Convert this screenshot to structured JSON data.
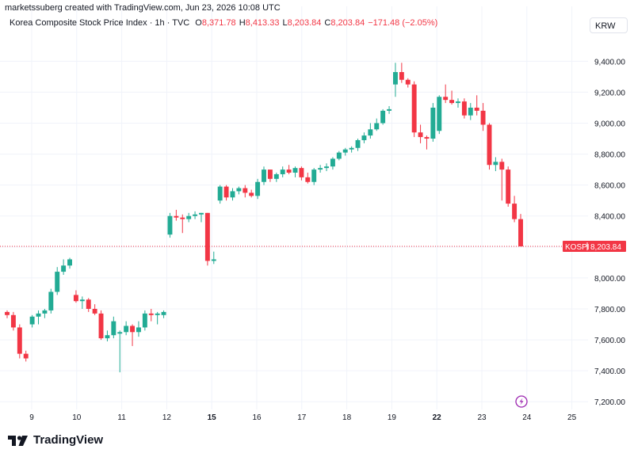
{
  "header": {
    "created_by": "marketssuberg created with TradingView.com, Jun 23, 2026 10:08 UTC",
    "symbol": "Korea Composite Stock Price Index · 1h · TVC",
    "open_label": "O",
    "open": "8,371.78",
    "high_label": "H",
    "high": "8,413.33",
    "low_label": "L",
    "low": "8,203.84",
    "close_label": "C",
    "close": "8,203.84",
    "change": "−171.48 (−2.05%)",
    "currency": "KRW"
  },
  "price_tag": {
    "label": "KOSPI",
    "value": "8,203.84"
  },
  "brand": {
    "name": "TradingView"
  },
  "colors": {
    "up": "#22ab94",
    "down": "#f23645",
    "grid": "#f0f3fa",
    "axis_text": "#131722"
  },
  "chart_data": {
    "type": "candlestick",
    "ylim": [
      7150,
      9550
    ],
    "y_ticks": [
      {
        "value": 7200,
        "label": "7,200.00"
      },
      {
        "value": 7400,
        "label": "7,400.00"
      },
      {
        "value": 7600,
        "label": "7,600.00"
      },
      {
        "value": 7800,
        "label": "7,800.00"
      },
      {
        "value": 8000,
        "label": "8,000.00"
      },
      {
        "value": 8200,
        "label": "8,200.00"
      },
      {
        "value": 8400,
        "label": "8,400.00"
      },
      {
        "value": 8600,
        "label": "8,600.00"
      },
      {
        "value": 8800,
        "label": "8,800.00"
      },
      {
        "value": 9000,
        "label": "9,000.00"
      },
      {
        "value": 9200,
        "label": "9,200.00"
      },
      {
        "value": 9400,
        "label": "9,400.00"
      }
    ],
    "x_ticks": [
      {
        "label": "9",
        "bold": false
      },
      {
        "label": "10",
        "bold": false
      },
      {
        "label": "11",
        "bold": false
      },
      {
        "label": "12",
        "bold": false
      },
      {
        "label": "15",
        "bold": true
      },
      {
        "label": "16",
        "bold": false
      },
      {
        "label": "17",
        "bold": false
      },
      {
        "label": "18",
        "bold": false
      },
      {
        "label": "19",
        "bold": false
      },
      {
        "label": "22",
        "bold": true
      },
      {
        "label": "23",
        "bold": false
      },
      {
        "label": "24",
        "bold": false
      },
      {
        "label": "25",
        "bold": false
      }
    ],
    "last_price": 8203.84,
    "days": [
      {
        "day": "8",
        "candles": [
          [
            7780,
            7790,
            7740,
            7760
          ]
        ]
      },
      {
        "day": "9",
        "candles": [
          [
            7760,
            7780,
            7660,
            7680
          ],
          [
            7680,
            7700,
            7480,
            7510
          ],
          [
            7510,
            7530,
            7460,
            7480
          ],
          [
            7700,
            7760,
            7680,
            7750
          ],
          [
            7750,
            7790,
            7700,
            7770
          ],
          [
            7770,
            7800,
            7740,
            7790
          ]
        ]
      },
      {
        "day": "10",
        "candles": [
          [
            7790,
            7930,
            7770,
            7910
          ],
          [
            7910,
            8070,
            7890,
            8040
          ],
          [
            8040,
            8120,
            8020,
            8080
          ],
          [
            8080,
            8130,
            8060,
            8120
          ],
          [
            7890,
            7920,
            7840,
            7850
          ],
          [
            7850,
            7880,
            7800,
            7860
          ],
          [
            7860,
            7870,
            7780,
            7800
          ]
        ]
      },
      {
        "day": "11",
        "candles": [
          [
            7800,
            7830,
            7760,
            7770
          ],
          [
            7770,
            7790,
            7600,
            7610
          ],
          [
            7610,
            7660,
            7590,
            7630
          ],
          [
            7630,
            7750,
            7610,
            7720
          ],
          [
            7640,
            7660,
            7390,
            7650
          ],
          [
            7650,
            7720,
            7630,
            7690
          ],
          [
            7690,
            7700,
            7560,
            7650
          ]
        ]
      },
      {
        "day": "12",
        "candles": [
          [
            7650,
            7720,
            7620,
            7680
          ],
          [
            7680,
            7790,
            7660,
            7770
          ],
          [
            7770,
            7800,
            7720,
            7760
          ],
          [
            7760,
            7780,
            7700,
            7770
          ],
          [
            7760,
            7790,
            7740,
            7780
          ]
        ]
      },
      {
        "day": "12b",
        "candles": [
          [
            8280,
            8420,
            8260,
            8400
          ],
          [
            8400,
            8440,
            8370,
            8390
          ],
          [
            8390,
            8410,
            8290,
            8380
          ],
          [
            8380,
            8420,
            8360,
            8400
          ],
          [
            8400,
            8430,
            8380,
            8410
          ],
          [
            8410,
            8420,
            8360,
            8420
          ]
        ]
      },
      {
        "day": "15",
        "candles": [
          [
            8420,
            8420,
            8080,
            8110
          ],
          [
            8110,
            8170,
            8090,
            8120
          ],
          [
            8500,
            8600,
            8480,
            8590
          ],
          [
            8590,
            8600,
            8500,
            8520
          ],
          [
            8520,
            8580,
            8500,
            8560
          ],
          [
            8560,
            8590,
            8540,
            8580
          ]
        ]
      },
      {
        "day": "16",
        "candles": [
          [
            8580,
            8600,
            8520,
            8550
          ],
          [
            8550,
            8570,
            8520,
            8530
          ],
          [
            8530,
            8640,
            8510,
            8620
          ],
          [
            8620,
            8720,
            8600,
            8700
          ],
          [
            8700,
            8700,
            8620,
            8640
          ],
          [
            8640,
            8680,
            8620,
            8670
          ],
          [
            8670,
            8720,
            8650,
            8700
          ]
        ]
      },
      {
        "day": "17",
        "candles": [
          [
            8700,
            8730,
            8670,
            8680
          ],
          [
            8680,
            8720,
            8650,
            8710
          ],
          [
            8710,
            8720,
            8630,
            8650
          ],
          [
            8650,
            8680,
            8610,
            8620
          ],
          [
            8620,
            8710,
            8600,
            8700
          ],
          [
            8700,
            8730,
            8680,
            8710
          ],
          [
            8710,
            8740,
            8690,
            8720
          ]
        ]
      },
      {
        "day": "18",
        "candles": [
          [
            8720,
            8780,
            8700,
            8770
          ],
          [
            8770,
            8820,
            8760,
            8810
          ],
          [
            8810,
            8840,
            8790,
            8830
          ],
          [
            8830,
            8850,
            8810,
            8840
          ],
          [
            8840,
            8900,
            8820,
            8890
          ],
          [
            8890,
            8940,
            8870,
            8920
          ],
          [
            8920,
            9000,
            8900,
            8960
          ],
          [
            8960,
            9030,
            8950,
            9000
          ]
        ]
      },
      {
        "day": "19",
        "candles": [
          [
            9000,
            9090,
            8990,
            9080
          ],
          [
            9080,
            9110,
            9060,
            9090
          ],
          [
            9250,
            9390,
            9170,
            9330
          ],
          [
            9330,
            9390,
            9260,
            9280
          ],
          [
            9280,
            9290,
            9230,
            9250
          ],
          [
            9250,
            9270,
            8910,
            8940
          ],
          [
            8940,
            8990,
            8870,
            8910
          ]
        ]
      },
      {
        "day": "22",
        "candles": [
          [
            8910,
            8920,
            8830,
            8900
          ],
          [
            8900,
            9130,
            8880,
            9100
          ],
          [
            8950,
            9180,
            8930,
            9170
          ],
          [
            9170,
            9250,
            9130,
            9150
          ],
          [
            9150,
            9210,
            9120,
            9130
          ],
          [
            9130,
            9160,
            9100,
            9140
          ],
          [
            9140,
            9160,
            9030,
            9050
          ]
        ]
      },
      {
        "day": "23",
        "candles": [
          [
            9050,
            9130,
            9020,
            9100
          ],
          [
            9100,
            9180,
            9050,
            9080
          ],
          [
            9080,
            9130,
            8950,
            8990
          ],
          [
            8990,
            9000,
            8700,
            8730
          ],
          [
            8730,
            8780,
            8690,
            8750
          ],
          [
            8750,
            8770,
            8500,
            8700
          ],
          [
            8700,
            8720,
            8460,
            8480
          ],
          [
            8480,
            8530,
            8360,
            8380
          ],
          [
            8380,
            8413.33,
            8203.84,
            8203.84
          ]
        ]
      }
    ]
  }
}
